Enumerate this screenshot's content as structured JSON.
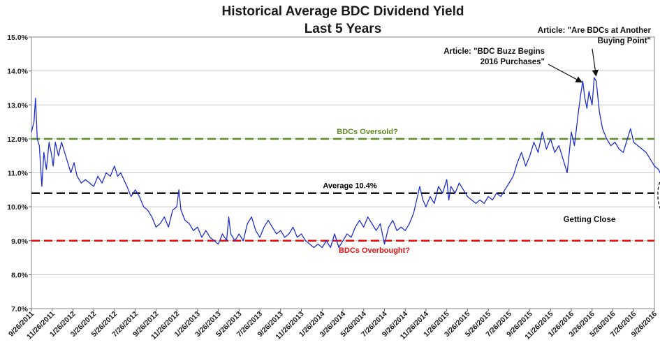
{
  "chart_data": {
    "type": "line",
    "title": "Historical Average BDC Dividend Yield",
    "subtitle": "Last 5 Years",
    "ylabel": "",
    "xlabel": "",
    "ylim": [
      7.0,
      15.0
    ],
    "yticks": [
      "7.0%",
      "8.0%",
      "9.0%",
      "10.0%",
      "11.0%",
      "12.0%",
      "13.0%",
      "14.0%",
      "15.0%"
    ],
    "xticks": [
      "9/26/2011",
      "11/26/2011",
      "1/26/2012",
      "3/26/2012",
      "5/26/2012",
      "7/26/2012",
      "9/26/2012",
      "11/26/2012",
      "1/26/2013",
      "3/26/2013",
      "5/26/2013",
      "7/26/2013",
      "9/26/2013",
      "11/26/2013",
      "1/26/2014",
      "3/26/2014",
      "5/26/2014",
      "7/26/2014",
      "9/26/2014",
      "11/26/2014",
      "1/26/2015",
      "3/26/2015",
      "5/26/2015",
      "7/26/2015",
      "9/26/2015",
      "11/26/2015",
      "1/26/2016",
      "3/26/2016",
      "5/26/2016",
      "7/26/2016",
      "9/26/2016"
    ],
    "series": [
      {
        "name": "Average BDC Dividend Yield",
        "color": "#1f2fd1",
        "points": [
          [
            0.0,
            12.2
          ],
          [
            0.12,
            12.5
          ],
          [
            0.2,
            13.2
          ],
          [
            0.28,
            12.0
          ],
          [
            0.38,
            11.8
          ],
          [
            0.5,
            10.6
          ],
          [
            0.6,
            11.6
          ],
          [
            0.72,
            11.1
          ],
          [
            0.85,
            11.9
          ],
          [
            0.95,
            11.6
          ],
          [
            1.05,
            11.2
          ],
          [
            1.15,
            11.9
          ],
          [
            1.3,
            11.5
          ],
          [
            1.45,
            11.9
          ],
          [
            1.6,
            11.6
          ],
          [
            1.75,
            11.3
          ],
          [
            1.9,
            11.0
          ],
          [
            2.05,
            11.3
          ],
          [
            2.2,
            10.9
          ],
          [
            2.4,
            10.7
          ],
          [
            2.6,
            10.8
          ],
          [
            2.8,
            10.7
          ],
          [
            3.0,
            10.6
          ],
          [
            3.2,
            10.9
          ],
          [
            3.4,
            10.7
          ],
          [
            3.6,
            11.0
          ],
          [
            3.8,
            10.9
          ],
          [
            4.0,
            11.2
          ],
          [
            4.15,
            10.9
          ],
          [
            4.3,
            11.0
          ],
          [
            4.45,
            10.8
          ],
          [
            4.6,
            10.6
          ],
          [
            4.8,
            10.3
          ],
          [
            5.0,
            10.5
          ],
          [
            5.2,
            10.3
          ],
          [
            5.4,
            10.0
          ],
          [
            5.6,
            9.9
          ],
          [
            5.8,
            9.7
          ],
          [
            6.0,
            9.4
          ],
          [
            6.2,
            9.5
          ],
          [
            6.4,
            9.7
          ],
          [
            6.6,
            9.4
          ],
          [
            6.8,
            9.9
          ],
          [
            7.0,
            10.0
          ],
          [
            7.1,
            10.5
          ],
          [
            7.2,
            9.9
          ],
          [
            7.4,
            9.6
          ],
          [
            7.6,
            9.5
          ],
          [
            7.8,
            9.3
          ],
          [
            8.0,
            9.4
          ],
          [
            8.2,
            9.1
          ],
          [
            8.4,
            9.3
          ],
          [
            8.6,
            9.1
          ],
          [
            8.8,
            9.0
          ],
          [
            9.0,
            8.9
          ],
          [
            9.2,
            9.2
          ],
          [
            9.4,
            9.0
          ],
          [
            9.5,
            9.7
          ],
          [
            9.6,
            9.2
          ],
          [
            9.8,
            9.0
          ],
          [
            10.0,
            9.2
          ],
          [
            10.2,
            9.0
          ],
          [
            10.4,
            9.5
          ],
          [
            10.6,
            9.7
          ],
          [
            10.8,
            9.3
          ],
          [
            11.0,
            9.1
          ],
          [
            11.2,
            9.4
          ],
          [
            11.4,
            9.6
          ],
          [
            11.6,
            9.4
          ],
          [
            11.8,
            9.2
          ],
          [
            12.0,
            9.3
          ],
          [
            12.2,
            9.1
          ],
          [
            12.4,
            9.2
          ],
          [
            12.6,
            9.4
          ],
          [
            12.8,
            9.1
          ],
          [
            13.0,
            9.2
          ],
          [
            13.2,
            9.0
          ],
          [
            13.4,
            8.9
          ],
          [
            13.6,
            8.8
          ],
          [
            13.8,
            8.9
          ],
          [
            14.0,
            8.8
          ],
          [
            14.2,
            9.0
          ],
          [
            14.4,
            8.8
          ],
          [
            14.6,
            9.2
          ],
          [
            14.8,
            8.8
          ],
          [
            15.0,
            9.0
          ],
          [
            15.2,
            9.2
          ],
          [
            15.4,
            9.1
          ],
          [
            15.6,
            9.4
          ],
          [
            15.8,
            9.6
          ],
          [
            16.0,
            9.4
          ],
          [
            16.2,
            9.7
          ],
          [
            16.4,
            9.5
          ],
          [
            16.6,
            9.3
          ],
          [
            16.8,
            9.5
          ],
          [
            17.0,
            8.9
          ],
          [
            17.2,
            9.4
          ],
          [
            17.4,
            9.6
          ],
          [
            17.6,
            9.3
          ],
          [
            17.8,
            9.4
          ],
          [
            18.0,
            9.3
          ],
          [
            18.2,
            9.5
          ],
          [
            18.4,
            9.8
          ],
          [
            18.55,
            10.2
          ],
          [
            18.7,
            10.6
          ],
          [
            18.85,
            10.2
          ],
          [
            19.0,
            10.0
          ],
          [
            19.2,
            10.3
          ],
          [
            19.4,
            10.1
          ],
          [
            19.6,
            10.6
          ],
          [
            19.8,
            10.4
          ],
          [
            20.0,
            10.8
          ],
          [
            20.1,
            10.2
          ],
          [
            20.2,
            10.6
          ],
          [
            20.4,
            10.4
          ],
          [
            20.6,
            10.7
          ],
          [
            20.8,
            10.5
          ],
          [
            21.0,
            10.3
          ],
          [
            21.2,
            10.2
          ],
          [
            21.4,
            10.1
          ],
          [
            21.6,
            10.2
          ],
          [
            21.8,
            10.1
          ],
          [
            22.0,
            10.3
          ],
          [
            22.2,
            10.2
          ],
          [
            22.4,
            10.4
          ],
          [
            22.6,
            10.3
          ],
          [
            22.8,
            10.5
          ],
          [
            23.0,
            10.7
          ],
          [
            23.2,
            10.9
          ],
          [
            23.4,
            11.3
          ],
          [
            23.6,
            11.6
          ],
          [
            23.8,
            11.2
          ],
          [
            24.0,
            11.5
          ],
          [
            24.2,
            11.9
          ],
          [
            24.4,
            11.6
          ],
          [
            24.6,
            12.2
          ],
          [
            24.8,
            11.7
          ],
          [
            25.0,
            12.0
          ],
          [
            25.2,
            11.6
          ],
          [
            25.4,
            11.8
          ],
          [
            25.6,
            11.4
          ],
          [
            25.8,
            11.0
          ],
          [
            25.9,
            11.6
          ],
          [
            26.0,
            12.2
          ],
          [
            26.15,
            11.8
          ],
          [
            26.3,
            12.6
          ],
          [
            26.45,
            13.3
          ],
          [
            26.55,
            13.7
          ],
          [
            26.65,
            13.2
          ],
          [
            26.75,
            12.9
          ],
          [
            26.85,
            13.4
          ],
          [
            27.0,
            13.0
          ],
          [
            27.1,
            13.8
          ],
          [
            27.2,
            13.7
          ],
          [
            27.35,
            12.8
          ],
          [
            27.5,
            12.3
          ],
          [
            27.7,
            12.0
          ],
          [
            27.9,
            11.8
          ],
          [
            28.1,
            11.9
          ],
          [
            28.3,
            11.7
          ],
          [
            28.5,
            11.6
          ],
          [
            28.7,
            12.0
          ],
          [
            28.85,
            12.3
          ],
          [
            29.0,
            11.9
          ],
          [
            29.2,
            11.8
          ],
          [
            29.4,
            11.7
          ],
          [
            29.6,
            11.6
          ],
          [
            29.8,
            11.4
          ],
          [
            30.0,
            11.2
          ],
          [
            30.2,
            11.1
          ],
          [
            30.35,
            10.9
          ],
          [
            30.5,
            10.7
          ],
          [
            30.65,
            10.6
          ],
          [
            30.8,
            10.9
          ],
          [
            30.9,
            11.0
          ],
          [
            31.0,
            10.8
          ],
          [
            31.1,
            10.8
          ]
        ]
      }
    ],
    "reference_lines": [
      {
        "label": "BDCs Oversold?",
        "value": 12.0,
        "color": "#5e8c2a"
      },
      {
        "label": "Average 10.4%",
        "value": 10.4,
        "color": "#000000"
      },
      {
        "label": "BDCs Overbought?",
        "value": 9.0,
        "color": "#e01010"
      }
    ],
    "annotations": [
      {
        "name": "annotation-bdc-buzz",
        "lines": [
          "Article: \"BDC Buzz Begins",
          "2016 Purchases\""
        ],
        "target": [
          26.5,
          13.6
        ]
      },
      {
        "name": "annotation-buying-point",
        "lines": [
          "Article: \"Are BDCs at Another",
          "Buying Point\""
        ],
        "target": [
          27.15,
          13.8
        ]
      },
      {
        "name": "annotation-getting-close",
        "lines": [
          "Getting Close"
        ],
        "target": [
          30.6,
          10.4
        ]
      }
    ]
  }
}
